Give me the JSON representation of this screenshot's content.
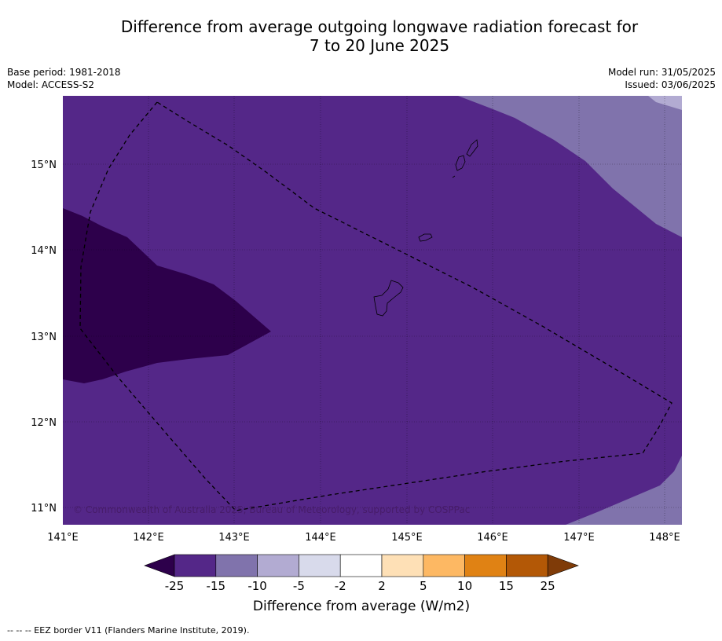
{
  "title": {
    "line1": "Difference from average outgoing longwave radiation forecast for",
    "line2": "7 to 20 June 2025"
  },
  "meta_left": {
    "base_period": "Base period: 1981-2018",
    "model": "Model: ACCESS-S2"
  },
  "meta_right": {
    "model_run": "Model run: 31/05/2025",
    "issued": "Issued: 03/06/2025"
  },
  "copyright": "© Commonwealth of Australia 2025, Bureau of Meteorology, supported by COSPPac",
  "lon_ticks": [
    "141°E",
    "142°E",
    "143°E",
    "144°E",
    "145°E",
    "146°E",
    "147°E",
    "148°E"
  ],
  "lat_ticks": [
    "15°N",
    "14°N",
    "13°N",
    "12°N",
    "11°N"
  ],
  "colorbar": {
    "label": "Difference from average (W/m2)",
    "ticks": [
      "-25",
      "-15",
      "-10",
      "-5",
      "-2",
      "2",
      "5",
      "10",
      "15",
      "25"
    ],
    "colors": [
      "#2d004b",
      "#542788",
      "#8073ac",
      "#b2abd2",
      "#d8daeb",
      "#ffffff",
      "#fee0b6",
      "#fdb863",
      "#e08214",
      "#b35806",
      "#7f3b08"
    ]
  },
  "footnote": "--  --  -- EEZ border V11 (Flanders Marine Institute, 2019).",
  "colors": {
    "band_lt_minus25": "#2d004b",
    "band_m25_m15": "#542788",
    "band_m15_m10": "#8073ac",
    "band_m10_m5": "#b2abd2"
  }
}
